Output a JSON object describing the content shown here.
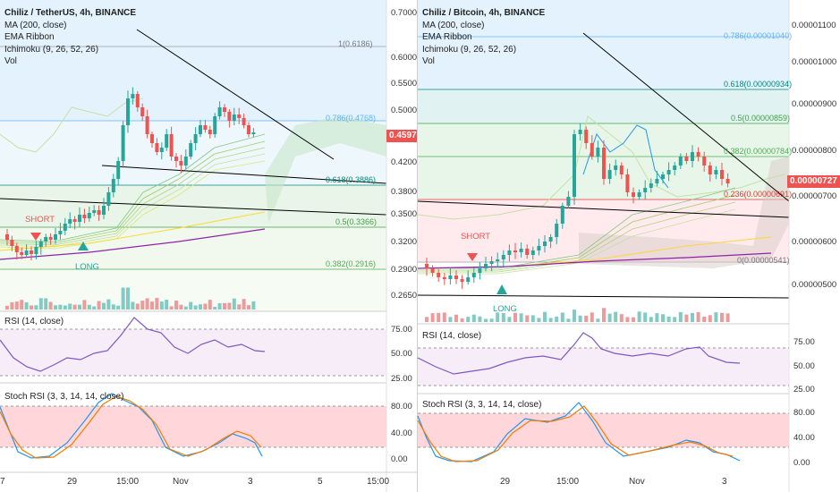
{
  "left": {
    "title": "Chiliz / TetherUS, 4h, BINANCE",
    "indicators": [
      "MA (200, close)",
      "EMA Ribbon",
      "Ichimoku (9, 26, 52, 26)",
      "Vol"
    ],
    "price_axis": [
      "0.7000",
      "0.6000",
      "0.5500",
      "0.5000",
      "0.4200",
      "0.3800",
      "0.3500",
      "0.3200",
      "0.2900",
      "0.2650"
    ],
    "current_price": "0.4597",
    "fib": [
      {
        "text": "1(0.6186)",
        "color": "#787b86"
      },
      {
        "text": "0.786(0.4768)",
        "color": "#64b5f6"
      },
      {
        "text": "0.618(0.3886)",
        "color": "#00897b"
      },
      {
        "text": "0.5(0.3366)",
        "color": "#43a047"
      },
      {
        "text": "0.382(0.2916)",
        "color": "#4caf50"
      }
    ],
    "short_label": "SHORT",
    "long_label": "LONG",
    "rsi_label": "RSI (14, close)",
    "rsi_axis": [
      "75.00",
      "50.00",
      "25.00"
    ],
    "stoch_label": "Stoch RSI (3, 3, 14, 14, close)",
    "stoch_axis": [
      "80.00",
      "40.00",
      "0.00"
    ],
    "time_axis": [
      "7",
      "29",
      "15:00",
      "Nov",
      "3",
      "5",
      "15:00"
    ]
  },
  "right": {
    "title": "Chiliz / Bitcoin, 4h, BINANCE",
    "indicators": [
      "MA (200, close)",
      "EMA Ribbon",
      "Ichimoku (9, 26, 52, 26)",
      "Vol"
    ],
    "price_axis": [
      "0.00001100",
      "0.00001000",
      "0.00000900",
      "0.00000800",
      "0.00000700",
      "0.00000600",
      "0.00000500"
    ],
    "current_price": "0.00000727",
    "fib": [
      {
        "text": "0.786(0.00001040)",
        "color": "#64b5f6"
      },
      {
        "text": "0.618(0.00000934)",
        "color": "#00897b"
      },
      {
        "text": "0.5(0.00000859)",
        "color": "#43a047"
      },
      {
        "text": "0.382(0.00000784)",
        "color": "#4caf50"
      },
      {
        "text": "0.236(0.00000691)",
        "color": "#e53935"
      },
      {
        "text": "0(0.00000541)",
        "color": "#787b86"
      }
    ],
    "short_label": "SHORT",
    "long_label": "LONG",
    "rsi_label": "RSI (14, close)",
    "rsi_axis": [
      "75.00",
      "50.00",
      "25.00"
    ],
    "stoch_label": "Stoch RSI (3, 3, 14, 14, close)",
    "stoch_axis": [
      "80.00",
      "40.00",
      "0.00"
    ],
    "time_axis": [
      "29",
      "15:00",
      "Nov",
      "3"
    ]
  },
  "colors": {
    "up": "#26a69a",
    "down": "#ef5350",
    "ma200": "#8e24aa",
    "trendline": "#000000",
    "rsi": "#7e57c2",
    "stoch_k": "#2196f3",
    "stoch_d": "#f57c00"
  }
}
